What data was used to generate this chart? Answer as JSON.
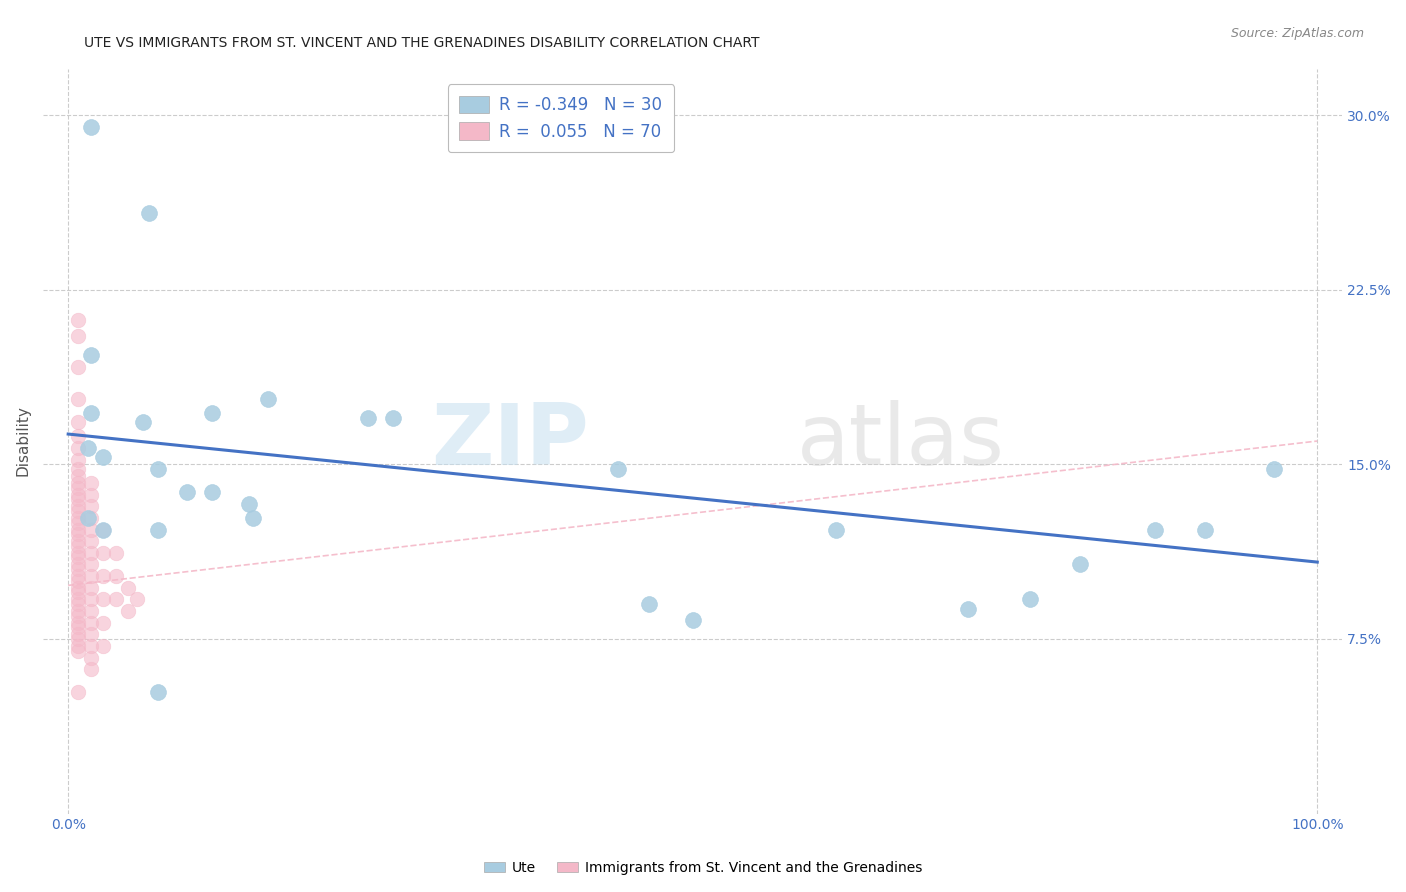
{
  "title": "UTE VS IMMIGRANTS FROM ST. VINCENT AND THE GRENADINES DISABILITY CORRELATION CHART",
  "source": "Source: ZipAtlas.com",
  "ylabel": "Disability",
  "watermark": "ZIPatlas",
  "xlim": [
    -0.02,
    1.02
  ],
  "ylim": [
    0.0,
    0.32
  ],
  "yticks": [
    0.075,
    0.15,
    0.225,
    0.3
  ],
  "yticklabels": [
    "7.5%",
    "15.0%",
    "22.5%",
    "30.0%"
  ],
  "legend_r_blue": "-0.349",
  "legend_n_blue": "30",
  "legend_r_pink": "0.055",
  "legend_n_pink": "70",
  "blue_color": "#a8cce0",
  "pink_color": "#f4b8c8",
  "trend_blue_color": "#4472c4",
  "trend_pink_color": "#f4b8c8",
  "tick_color": "#4472c4",
  "blue_scatter": [
    [
      0.018,
      0.295
    ],
    [
      0.065,
      0.258
    ],
    [
      0.018,
      0.197
    ],
    [
      0.018,
      0.172
    ],
    [
      0.06,
      0.168
    ],
    [
      0.115,
      0.172
    ],
    [
      0.16,
      0.178
    ],
    [
      0.24,
      0.17
    ],
    [
      0.26,
      0.17
    ],
    [
      0.016,
      0.157
    ],
    [
      0.028,
      0.153
    ],
    [
      0.072,
      0.148
    ],
    [
      0.095,
      0.138
    ],
    [
      0.115,
      0.138
    ],
    [
      0.145,
      0.133
    ],
    [
      0.148,
      0.127
    ],
    [
      0.016,
      0.127
    ],
    [
      0.028,
      0.122
    ],
    [
      0.072,
      0.122
    ],
    [
      0.44,
      0.148
    ],
    [
      0.465,
      0.09
    ],
    [
      0.5,
      0.083
    ],
    [
      0.615,
      0.122
    ],
    [
      0.72,
      0.088
    ],
    [
      0.77,
      0.092
    ],
    [
      0.81,
      0.107
    ],
    [
      0.87,
      0.122
    ],
    [
      0.91,
      0.122
    ],
    [
      0.965,
      0.148
    ],
    [
      0.072,
      0.052
    ]
  ],
  "pink_scatter": [
    [
      0.008,
      0.212
    ],
    [
      0.008,
      0.205
    ],
    [
      0.008,
      0.192
    ],
    [
      0.008,
      0.178
    ],
    [
      0.008,
      0.168
    ],
    [
      0.008,
      0.162
    ],
    [
      0.008,
      0.157
    ],
    [
      0.008,
      0.152
    ],
    [
      0.008,
      0.148
    ],
    [
      0.008,
      0.145
    ],
    [
      0.008,
      0.142
    ],
    [
      0.008,
      0.14
    ],
    [
      0.008,
      0.137
    ],
    [
      0.008,
      0.135
    ],
    [
      0.008,
      0.132
    ],
    [
      0.008,
      0.13
    ],
    [
      0.008,
      0.127
    ],
    [
      0.008,
      0.125
    ],
    [
      0.008,
      0.122
    ],
    [
      0.008,
      0.12
    ],
    [
      0.008,
      0.117
    ],
    [
      0.008,
      0.115
    ],
    [
      0.008,
      0.112
    ],
    [
      0.008,
      0.11
    ],
    [
      0.008,
      0.107
    ],
    [
      0.008,
      0.105
    ],
    [
      0.008,
      0.102
    ],
    [
      0.008,
      0.1
    ],
    [
      0.008,
      0.097
    ],
    [
      0.008,
      0.095
    ],
    [
      0.008,
      0.092
    ],
    [
      0.008,
      0.09
    ],
    [
      0.008,
      0.087
    ],
    [
      0.008,
      0.085
    ],
    [
      0.008,
      0.082
    ],
    [
      0.008,
      0.08
    ],
    [
      0.008,
      0.077
    ],
    [
      0.008,
      0.075
    ],
    [
      0.008,
      0.072
    ],
    [
      0.008,
      0.07
    ],
    [
      0.018,
      0.142
    ],
    [
      0.018,
      0.137
    ],
    [
      0.018,
      0.132
    ],
    [
      0.018,
      0.127
    ],
    [
      0.018,
      0.122
    ],
    [
      0.018,
      0.117
    ],
    [
      0.018,
      0.112
    ],
    [
      0.018,
      0.107
    ],
    [
      0.018,
      0.102
    ],
    [
      0.018,
      0.097
    ],
    [
      0.018,
      0.092
    ],
    [
      0.018,
      0.087
    ],
    [
      0.018,
      0.082
    ],
    [
      0.018,
      0.077
    ],
    [
      0.018,
      0.072
    ],
    [
      0.018,
      0.067
    ],
    [
      0.018,
      0.062
    ],
    [
      0.028,
      0.122
    ],
    [
      0.028,
      0.112
    ],
    [
      0.028,
      0.102
    ],
    [
      0.028,
      0.092
    ],
    [
      0.028,
      0.082
    ],
    [
      0.028,
      0.072
    ],
    [
      0.038,
      0.112
    ],
    [
      0.038,
      0.102
    ],
    [
      0.038,
      0.092
    ],
    [
      0.008,
      0.052
    ],
    [
      0.048,
      0.097
    ],
    [
      0.048,
      0.087
    ],
    [
      0.055,
      0.092
    ]
  ],
  "blue_trend_x": [
    0.0,
    1.0
  ],
  "blue_trend_y_start": 0.163,
  "blue_trend_y_end": 0.108,
  "pink_trend_x": [
    0.0,
    1.0
  ],
  "pink_trend_y_start": 0.098,
  "pink_trend_y_end": 0.16,
  "background_color": "#ffffff",
  "grid_color": "#cccccc"
}
